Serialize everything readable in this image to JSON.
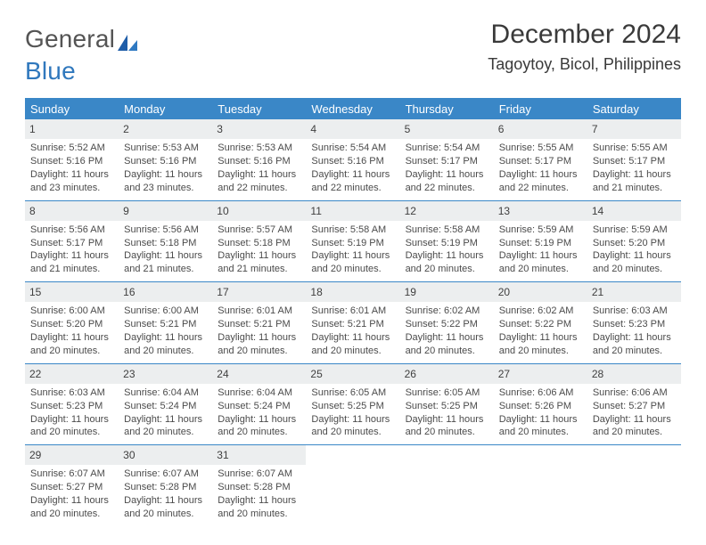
{
  "brand": {
    "line1": "General",
    "line2": "Blue"
  },
  "title": "December 2024",
  "location": "Tagoytoy, Bicol, Philippines",
  "colors": {
    "header_bg": "#3a87c7",
    "header_text": "#ffffff",
    "daynum_bg": "#eceeef",
    "row_border": "#3a87c7",
    "body_text": "#4b4b4b",
    "title_text": "#3a3a3a",
    "logo_gray": "#545454",
    "logo_blue": "#3078bd",
    "page_bg": "#ffffff"
  },
  "typography": {
    "title_fontsize": 30,
    "location_fontsize": 18,
    "dayhead_fontsize": 13,
    "cell_fontsize": 11,
    "daynum_fontsize": 12
  },
  "weekdays": [
    "Sunday",
    "Monday",
    "Tuesday",
    "Wednesday",
    "Thursday",
    "Friday",
    "Saturday"
  ],
  "days": [
    {
      "n": "1",
      "sunrise": "Sunrise: 5:52 AM",
      "sunset": "Sunset: 5:16 PM",
      "daylight1": "Daylight: 11 hours",
      "daylight2": "and 23 minutes."
    },
    {
      "n": "2",
      "sunrise": "Sunrise: 5:53 AM",
      "sunset": "Sunset: 5:16 PM",
      "daylight1": "Daylight: 11 hours",
      "daylight2": "and 23 minutes."
    },
    {
      "n": "3",
      "sunrise": "Sunrise: 5:53 AM",
      "sunset": "Sunset: 5:16 PM",
      "daylight1": "Daylight: 11 hours",
      "daylight2": "and 22 minutes."
    },
    {
      "n": "4",
      "sunrise": "Sunrise: 5:54 AM",
      "sunset": "Sunset: 5:16 PM",
      "daylight1": "Daylight: 11 hours",
      "daylight2": "and 22 minutes."
    },
    {
      "n": "5",
      "sunrise": "Sunrise: 5:54 AM",
      "sunset": "Sunset: 5:17 PM",
      "daylight1": "Daylight: 11 hours",
      "daylight2": "and 22 minutes."
    },
    {
      "n": "6",
      "sunrise": "Sunrise: 5:55 AM",
      "sunset": "Sunset: 5:17 PM",
      "daylight1": "Daylight: 11 hours",
      "daylight2": "and 22 minutes."
    },
    {
      "n": "7",
      "sunrise": "Sunrise: 5:55 AM",
      "sunset": "Sunset: 5:17 PM",
      "daylight1": "Daylight: 11 hours",
      "daylight2": "and 21 minutes."
    },
    {
      "n": "8",
      "sunrise": "Sunrise: 5:56 AM",
      "sunset": "Sunset: 5:17 PM",
      "daylight1": "Daylight: 11 hours",
      "daylight2": "and 21 minutes."
    },
    {
      "n": "9",
      "sunrise": "Sunrise: 5:56 AM",
      "sunset": "Sunset: 5:18 PM",
      "daylight1": "Daylight: 11 hours",
      "daylight2": "and 21 minutes."
    },
    {
      "n": "10",
      "sunrise": "Sunrise: 5:57 AM",
      "sunset": "Sunset: 5:18 PM",
      "daylight1": "Daylight: 11 hours",
      "daylight2": "and 21 minutes."
    },
    {
      "n": "11",
      "sunrise": "Sunrise: 5:58 AM",
      "sunset": "Sunset: 5:19 PM",
      "daylight1": "Daylight: 11 hours",
      "daylight2": "and 20 minutes."
    },
    {
      "n": "12",
      "sunrise": "Sunrise: 5:58 AM",
      "sunset": "Sunset: 5:19 PM",
      "daylight1": "Daylight: 11 hours",
      "daylight2": "and 20 minutes."
    },
    {
      "n": "13",
      "sunrise": "Sunrise: 5:59 AM",
      "sunset": "Sunset: 5:19 PM",
      "daylight1": "Daylight: 11 hours",
      "daylight2": "and 20 minutes."
    },
    {
      "n": "14",
      "sunrise": "Sunrise: 5:59 AM",
      "sunset": "Sunset: 5:20 PM",
      "daylight1": "Daylight: 11 hours",
      "daylight2": "and 20 minutes."
    },
    {
      "n": "15",
      "sunrise": "Sunrise: 6:00 AM",
      "sunset": "Sunset: 5:20 PM",
      "daylight1": "Daylight: 11 hours",
      "daylight2": "and 20 minutes."
    },
    {
      "n": "16",
      "sunrise": "Sunrise: 6:00 AM",
      "sunset": "Sunset: 5:21 PM",
      "daylight1": "Daylight: 11 hours",
      "daylight2": "and 20 minutes."
    },
    {
      "n": "17",
      "sunrise": "Sunrise: 6:01 AM",
      "sunset": "Sunset: 5:21 PM",
      "daylight1": "Daylight: 11 hours",
      "daylight2": "and 20 minutes."
    },
    {
      "n": "18",
      "sunrise": "Sunrise: 6:01 AM",
      "sunset": "Sunset: 5:21 PM",
      "daylight1": "Daylight: 11 hours",
      "daylight2": "and 20 minutes."
    },
    {
      "n": "19",
      "sunrise": "Sunrise: 6:02 AM",
      "sunset": "Sunset: 5:22 PM",
      "daylight1": "Daylight: 11 hours",
      "daylight2": "and 20 minutes."
    },
    {
      "n": "20",
      "sunrise": "Sunrise: 6:02 AM",
      "sunset": "Sunset: 5:22 PM",
      "daylight1": "Daylight: 11 hours",
      "daylight2": "and 20 minutes."
    },
    {
      "n": "21",
      "sunrise": "Sunrise: 6:03 AM",
      "sunset": "Sunset: 5:23 PM",
      "daylight1": "Daylight: 11 hours",
      "daylight2": "and 20 minutes."
    },
    {
      "n": "22",
      "sunrise": "Sunrise: 6:03 AM",
      "sunset": "Sunset: 5:23 PM",
      "daylight1": "Daylight: 11 hours",
      "daylight2": "and 20 minutes."
    },
    {
      "n": "23",
      "sunrise": "Sunrise: 6:04 AM",
      "sunset": "Sunset: 5:24 PM",
      "daylight1": "Daylight: 11 hours",
      "daylight2": "and 20 minutes."
    },
    {
      "n": "24",
      "sunrise": "Sunrise: 6:04 AM",
      "sunset": "Sunset: 5:24 PM",
      "daylight1": "Daylight: 11 hours",
      "daylight2": "and 20 minutes."
    },
    {
      "n": "25",
      "sunrise": "Sunrise: 6:05 AM",
      "sunset": "Sunset: 5:25 PM",
      "daylight1": "Daylight: 11 hours",
      "daylight2": "and 20 minutes."
    },
    {
      "n": "26",
      "sunrise": "Sunrise: 6:05 AM",
      "sunset": "Sunset: 5:25 PM",
      "daylight1": "Daylight: 11 hours",
      "daylight2": "and 20 minutes."
    },
    {
      "n": "27",
      "sunrise": "Sunrise: 6:06 AM",
      "sunset": "Sunset: 5:26 PM",
      "daylight1": "Daylight: 11 hours",
      "daylight2": "and 20 minutes."
    },
    {
      "n": "28",
      "sunrise": "Sunrise: 6:06 AM",
      "sunset": "Sunset: 5:27 PM",
      "daylight1": "Daylight: 11 hours",
      "daylight2": "and 20 minutes."
    },
    {
      "n": "29",
      "sunrise": "Sunrise: 6:07 AM",
      "sunset": "Sunset: 5:27 PM",
      "daylight1": "Daylight: 11 hours",
      "daylight2": "and 20 minutes."
    },
    {
      "n": "30",
      "sunrise": "Sunrise: 6:07 AM",
      "sunset": "Sunset: 5:28 PM",
      "daylight1": "Daylight: 11 hours",
      "daylight2": "and 20 minutes."
    },
    {
      "n": "31",
      "sunrise": "Sunrise: 6:07 AM",
      "sunset": "Sunset: 5:28 PM",
      "daylight1": "Daylight: 11 hours",
      "daylight2": "and 20 minutes."
    }
  ]
}
